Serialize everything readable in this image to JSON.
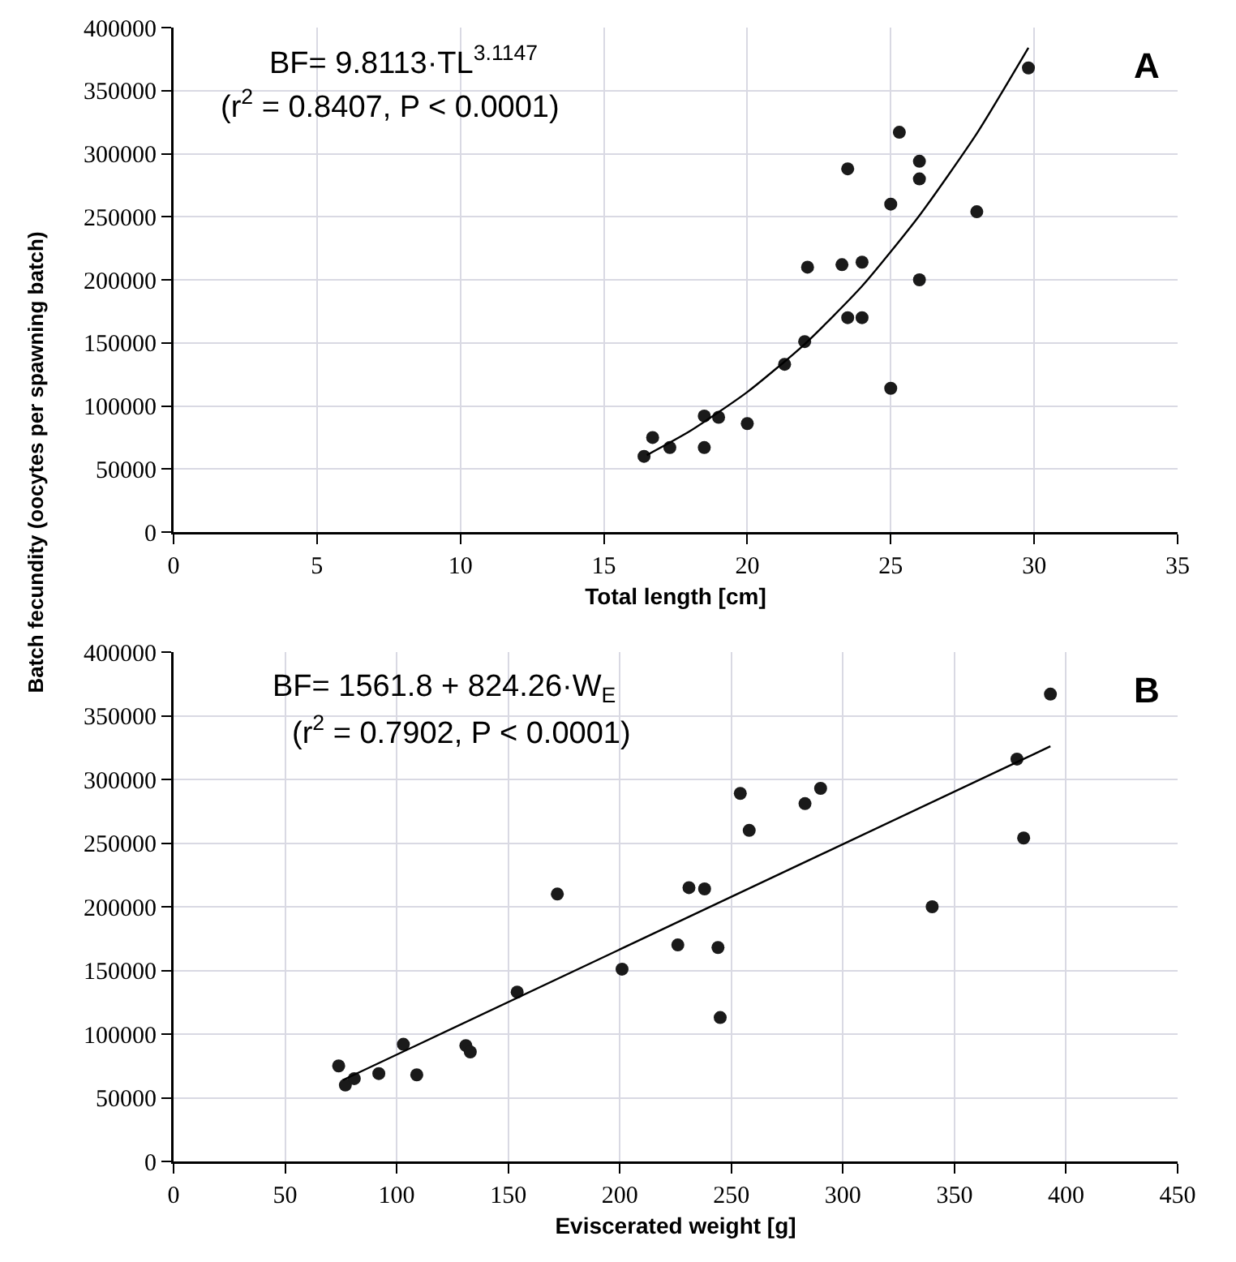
{
  "chart_data": [
    {
      "type": "scatter",
      "xlabel": "Total length [cm]",
      "ylabel": "Batch fecundity (oocytes per spawning batch)",
      "xlim": [
        0,
        35
      ],
      "xticks": [
        0,
        5,
        10,
        15,
        20,
        25,
        30,
        35
      ],
      "ylim": [
        0,
        400000
      ],
      "yticks": [
        0,
        50000,
        100000,
        150000,
        200000,
        250000,
        300000,
        350000,
        400000
      ],
      "grid": true,
      "annotations": [
        "BF= 9.8113·TL$^{3.1147}$",
        "(r$^{2}$ = 0.8407, P < 0.0001)",
        "A"
      ],
      "series": [
        {
          "color": "#1a1a1a",
          "marker": "circle",
          "x": [
            16.4,
            16.7,
            17.2,
            17.3,
            18.5,
            18.5,
            19.0,
            20.0,
            21.3,
            22.0,
            22.1,
            23.3,
            23.5,
            23.5,
            24.0,
            24.0,
            25.0,
            25.0,
            25.3,
            26.0,
            26.0,
            26.0,
            28.0,
            29.8
          ],
          "values": [
            60000,
            75000,
            null,
            67000,
            92000,
            67000,
            91000,
            86000,
            133000,
            151000,
            210000,
            212000,
            288000,
            170000,
            170000,
            214000,
            260000,
            114000,
            317000,
            294000,
            280000,
            200000,
            254000,
            368000
          ]
        },
        {
          "type": "line",
          "marker": "none",
          "color": "#000000",
          "x": [
            16.5,
            18,
            20,
            22,
            24,
            26,
            28,
            29.8
          ],
          "values": [
            61000,
            80000,
            111000,
            149000,
            195000,
            251000,
            316000,
            384000
          ]
        }
      ]
    },
    {
      "type": "scatter",
      "xlabel": "Eviscerated weight [g]",
      "xlim": [
        0,
        450
      ],
      "xticks": [
        0,
        50,
        100,
        150,
        200,
        250,
        300,
        350,
        400,
        450
      ],
      "ylim": [
        0,
        400000
      ],
      "yticks": [
        0,
        50000,
        100000,
        150000,
        200000,
        250000,
        300000,
        350000,
        400000
      ],
      "grid": true,
      "annotations": [
        "BF= 1561.8 + 824.26·W$_{E}$",
        "(r$^{2}$ = 0.7902, P < 0.0001)",
        "B"
      ],
      "series": [
        {
          "color": "#1a1a1a",
          "marker": "circle",
          "x": [
            74,
            77,
            81,
            92,
            103,
            109,
            131,
            133,
            154,
            172,
            201,
            226,
            231,
            238,
            244,
            245,
            254,
            258,
            283,
            290,
            340,
            378,
            381,
            393
          ],
          "values": [
            75000,
            60000,
            65000,
            69000,
            92000,
            68000,
            91000,
            86000,
            133000,
            210000,
            151000,
            170000,
            215000,
            214000,
            168000,
            113000,
            289000,
            260000,
            281000,
            293000,
            200000,
            316000,
            254000,
            367000
          ]
        },
        {
          "type": "line",
          "marker": "none",
          "color": "#000000",
          "x": [
            76,
            393
          ],
          "values": [
            64000,
            326000
          ]
        }
      ]
    }
  ]
}
